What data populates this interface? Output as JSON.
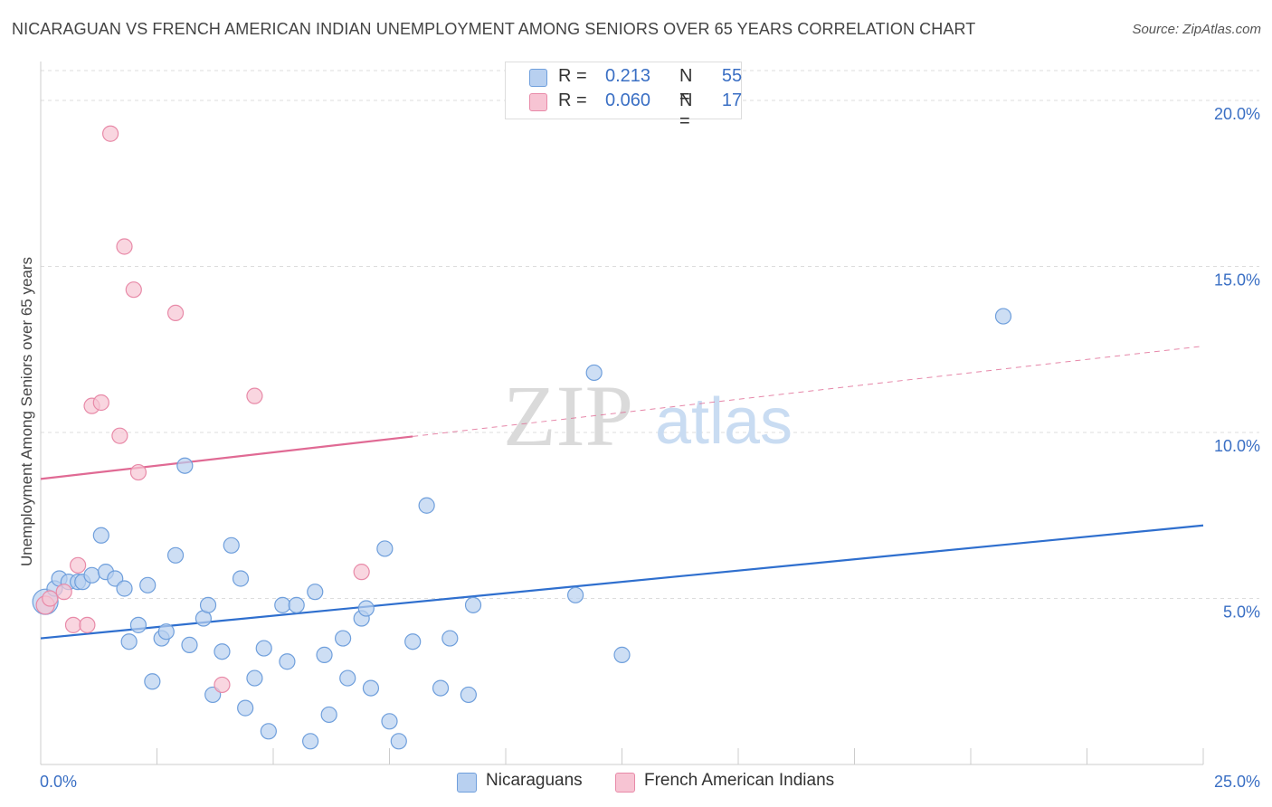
{
  "header": {
    "title": "NICARAGUAN VS FRENCH AMERICAN INDIAN UNEMPLOYMENT AMONG SENIORS OVER 65 YEARS CORRELATION CHART",
    "source": "Source: ZipAtlas.com"
  },
  "legend": {
    "rows": [
      {
        "r_label": "R =",
        "r_value": "0.213",
        "n_label": "N =",
        "n_value": "55"
      },
      {
        "r_label": "R =",
        "r_value": "0.060",
        "n_label": "N =",
        "n_value": "17"
      }
    ]
  },
  "bottom_legend": {
    "items": [
      {
        "label": "Nicaraguans"
      },
      {
        "label": "French American Indians"
      }
    ]
  },
  "watermark": {
    "zip": "ZIP",
    "atlas": "atlas"
  },
  "colors": {
    "blue_fill": "#b8d0f0",
    "blue_stroke": "#6f9fdc",
    "blue_line": "#2f6fce",
    "pink_fill": "#f7c4d3",
    "pink_stroke": "#e88aa8",
    "pink_line": "#e06a94",
    "tick_text": "#3a6fc4",
    "grid": "#dddddd"
  },
  "chart_data": {
    "type": "scatter",
    "title": "NICARAGUAN VS FRENCH AMERICAN INDIAN UNEMPLOYMENT AMONG SENIORS OVER 65 YEARS CORRELATION CHART",
    "xlabel": "",
    "ylabel": "Unemployment Among Seniors over 65 years",
    "xlim": [
      0,
      25
    ],
    "ylim": [
      0,
      20
    ],
    "x_tick_labels": [
      "0.0%",
      "25.0%"
    ],
    "y_ticks": [
      5,
      10,
      15,
      20
    ],
    "y_tick_labels": [
      "5.0%",
      "10.0%",
      "15.0%",
      "20.0%"
    ],
    "grid": true,
    "legend_position": "top-center",
    "series": [
      {
        "name": "Nicaraguans",
        "color": "#6f9fdc",
        "r": 0.213,
        "n": 55,
        "trend": {
          "x": [
            0,
            25
          ],
          "y": [
            3.8,
            7.2
          ]
        },
        "points": [
          [
            0.1,
            4.9
          ],
          [
            0.3,
            5.3
          ],
          [
            0.4,
            5.6
          ],
          [
            0.6,
            5.5
          ],
          [
            0.8,
            5.5
          ],
          [
            0.9,
            5.5
          ],
          [
            1.1,
            5.7
          ],
          [
            1.3,
            6.9
          ],
          [
            1.4,
            5.8
          ],
          [
            1.6,
            5.6
          ],
          [
            1.8,
            5.3
          ],
          [
            1.9,
            3.7
          ],
          [
            2.1,
            4.2
          ],
          [
            2.3,
            5.4
          ],
          [
            2.4,
            2.5
          ],
          [
            2.6,
            3.8
          ],
          [
            2.7,
            4.0
          ],
          [
            2.9,
            6.3
          ],
          [
            3.1,
            9.0
          ],
          [
            3.2,
            3.6
          ],
          [
            3.5,
            4.4
          ],
          [
            3.6,
            4.8
          ],
          [
            3.7,
            2.1
          ],
          [
            3.9,
            3.4
          ],
          [
            4.1,
            6.6
          ],
          [
            4.3,
            5.6
          ],
          [
            4.4,
            1.7
          ],
          [
            4.6,
            2.6
          ],
          [
            4.8,
            3.5
          ],
          [
            4.9,
            1.0
          ],
          [
            5.2,
            4.8
          ],
          [
            5.3,
            3.1
          ],
          [
            5.5,
            4.8
          ],
          [
            5.8,
            0.7
          ],
          [
            5.9,
            5.2
          ],
          [
            6.1,
            3.3
          ],
          [
            6.2,
            1.5
          ],
          [
            6.5,
            3.8
          ],
          [
            6.6,
            2.6
          ],
          [
            6.9,
            4.4
          ],
          [
            7.0,
            4.7
          ],
          [
            7.1,
            2.3
          ],
          [
            7.4,
            6.5
          ],
          [
            7.5,
            1.3
          ],
          [
            7.7,
            0.7
          ],
          [
            8.0,
            3.7
          ],
          [
            8.3,
            7.8
          ],
          [
            8.6,
            2.3
          ],
          [
            8.8,
            3.8
          ],
          [
            9.2,
            2.1
          ],
          [
            9.3,
            4.8
          ],
          [
            11.5,
            5.1
          ],
          [
            11.9,
            11.8
          ],
          [
            12.5,
            3.3
          ],
          [
            20.7,
            13.5
          ]
        ]
      },
      {
        "name": "French American Indians",
        "color": "#e88aa8",
        "r": 0.06,
        "n": 17,
        "trend": {
          "x": [
            0,
            25
          ],
          "y": [
            8.6,
            12.6
          ],
          "solid_until_x": 8
        },
        "points": [
          [
            0.1,
            4.8
          ],
          [
            0.2,
            5.0
          ],
          [
            0.5,
            5.2
          ],
          [
            0.7,
            4.2
          ],
          [
            0.8,
            6.0
          ],
          [
            1.0,
            4.2
          ],
          [
            1.1,
            10.8
          ],
          [
            1.3,
            10.9
          ],
          [
            1.5,
            19.0
          ],
          [
            1.7,
            9.9
          ],
          [
            1.8,
            15.6
          ],
          [
            2.0,
            14.3
          ],
          [
            2.1,
            8.8
          ],
          [
            2.9,
            13.6
          ],
          [
            3.9,
            2.4
          ],
          [
            4.6,
            11.1
          ],
          [
            6.9,
            5.8
          ]
        ]
      }
    ]
  }
}
